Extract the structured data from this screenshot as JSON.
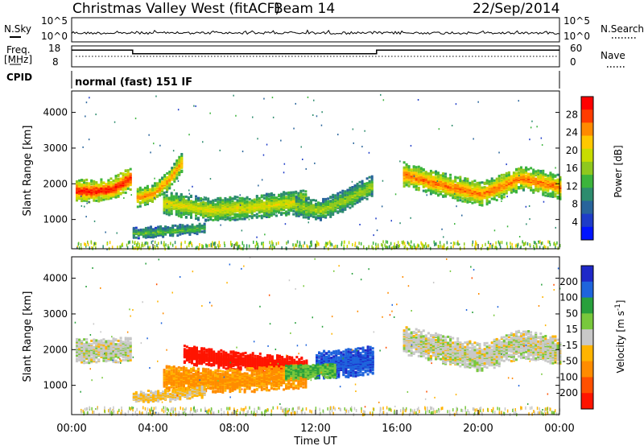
{
  "header": {
    "station": "Christmas Valley West (fitACF)",
    "beam": "Beam 14",
    "date": "22/Sep/2014"
  },
  "nsky_panel": {
    "left_label": "N.Sky",
    "right_label": "N.Search",
    "left_ticks": [
      "10^5",
      "10^0"
    ],
    "right_ticks": [
      "10^5",
      "10^0"
    ]
  },
  "freq_panel": {
    "left_label_line1": "Freq.",
    "left_label_line2": "[MHz]",
    "right_label": "Nave",
    "left_ticks": [
      "18",
      "8"
    ],
    "right_ticks": [
      "60",
      "0"
    ],
    "freq_steps": [
      {
        "t0": 0.0,
        "t1": 3.0,
        "mhz": 16.5
      },
      {
        "t0": 3.0,
        "t1": 15.0,
        "mhz": 14.5
      },
      {
        "t0": 15.0,
        "t1": 24.0,
        "mhz": 16.5
      }
    ]
  },
  "cpid": {
    "label": "CPID",
    "value": "normal (fast) 151 IF"
  },
  "time_axis": {
    "label": "Time UT",
    "ticks": [
      "00:00",
      "04:00",
      "08:00",
      "12:00",
      "16:00",
      "20:00",
      "00:00"
    ]
  },
  "chart_data": [
    {
      "type": "heatmap",
      "name": "power",
      "ylabel": "Slant Range [km]",
      "xrange_hours": [
        0,
        24
      ],
      "ylim": [
        180,
        4600
      ],
      "yticks": [
        "1000",
        "2000",
        "3000",
        "4000"
      ],
      "colorbar": {
        "label": "Power [dB]",
        "ticks": [
          "28",
          "24",
          "20",
          "16",
          "12",
          "8",
          "4"
        ],
        "colors": [
          "#ff0000",
          "#ff3c00",
          "#ff8a00",
          "#ffc800",
          "#c8dc00",
          "#8fc81e",
          "#3cb43c",
          "#2d8c6e",
          "#28649b",
          "#1e3cc8",
          "#0014ff"
        ]
      },
      "bands": [
        {
          "t0": 0.2,
          "t1": 2.9,
          "center": [
            1850,
            1820,
            1900,
            2200
          ],
          "width": 240,
          "level": 0.9
        },
        {
          "t0": 3.2,
          "t1": 5.4,
          "center": [
            1650,
            1750,
            2100,
            2650
          ],
          "width": 200,
          "level": 0.75
        },
        {
          "t0": 4.5,
          "t1": 11.5,
          "center": [
            1500,
            1300,
            1400,
            1550
          ],
          "width": 250,
          "level": 0.6
        },
        {
          "t0": 11.0,
          "t1": 14.8,
          "center": [
            1400,
            1300,
            1600,
            2000
          ],
          "width": 220,
          "level": 0.5
        },
        {
          "t0": 16.3,
          "t1": 24.0,
          "center": [
            2300,
            2000,
            1750,
            2200,
            1950
          ],
          "width": 260,
          "level": 0.78
        },
        {
          "t0": 3.0,
          "t1": 6.5,
          "center": [
            650,
            700,
            800
          ],
          "width": 110,
          "level": 0.4
        }
      ]
    },
    {
      "type": "heatmap",
      "name": "velocity",
      "ylabel": "Slant Range [km]",
      "xrange_hours": [
        0,
        24
      ],
      "ylim": [
        180,
        4600
      ],
      "yticks": [
        "1000",
        "2000",
        "3000",
        "4000"
      ],
      "colorbar": {
        "label": "Velocity [m s^-1]",
        "ticks": [
          "200",
          "100",
          "50",
          "15",
          "-15",
          "-50",
          "-100",
          "-200"
        ],
        "colors": [
          "#1e28c8",
          "#1e64dc",
          "#28a03c",
          "#78c83c",
          "#c8c8c8",
          "#ffb400",
          "#ff8c00",
          "#ff5000",
          "#ff1400"
        ]
      },
      "bands": [
        {
          "t0": 0.2,
          "t1": 2.9,
          "center": [
            2000,
            2000,
            2050
          ],
          "width": 260,
          "vel": 0
        },
        {
          "t0": 5.5,
          "t1": 11.5,
          "center": [
            1900,
            1750,
            1650,
            1550
          ],
          "width": 200,
          "vel": -200
        },
        {
          "t0": 4.5,
          "t1": 11.5,
          "center": [
            1250,
            1150,
            1200,
            1300
          ],
          "width": 260,
          "vel": -60
        },
        {
          "t0": 12.0,
          "t1": 14.8,
          "center": [
            1600,
            1650,
            1750
          ],
          "width": 300,
          "vel": 150
        },
        {
          "t0": 10.5,
          "t1": 13.0,
          "center": [
            1400,
            1450
          ],
          "width": 150,
          "vel": 40
        },
        {
          "t0": 16.3,
          "t1": 24.0,
          "center": [
            2300,
            2050,
            1800,
            2200,
            2000
          ],
          "width": 300,
          "vel": 0
        },
        {
          "t0": 3.0,
          "t1": 6.5,
          "center": [
            700,
            750,
            850
          ],
          "width": 120,
          "vel": -20
        }
      ]
    }
  ]
}
